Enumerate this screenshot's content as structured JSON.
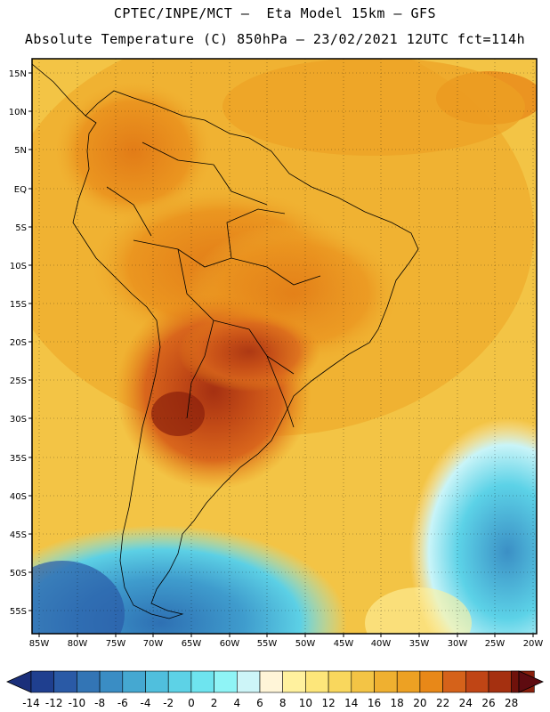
{
  "header": {
    "line1": "CPTEC/INPE/MCT –  Eta Model 15km – GFS",
    "line2": "Absolute Temperature (C) 850hPa – 23/02/2021 12UTC fct=114h"
  },
  "axes": {
    "lat_labels": [
      "15N",
      "10N",
      "5N",
      "EQ",
      "5S",
      "10S",
      "15S",
      "20S",
      "25S",
      "30S",
      "35S",
      "40S",
      "45S",
      "50S",
      "55S"
    ],
    "lon_labels": [
      "85W",
      "80W",
      "75W",
      "70W",
      "65W",
      "60W",
      "55W",
      "50W",
      "45W",
      "40W",
      "35W",
      "30W",
      "25W",
      "20W"
    ]
  },
  "colorbar": {
    "labels": [
      "-14",
      "-12",
      "-10",
      "-8",
      "-6",
      "-4",
      "-2",
      "0",
      "2",
      "4",
      "6",
      "8",
      "10",
      "12",
      "14",
      "16",
      "18",
      "20",
      "22",
      "24",
      "26",
      "28"
    ],
    "colors": [
      "#1f3f8f",
      "#2a5aa6",
      "#3375b5",
      "#3a8dc4",
      "#45a8d1",
      "#50bfdd",
      "#5dd2e6",
      "#6ee4ef",
      "#8ff4f6",
      "#cdf5f8",
      "#fff5d8",
      "#fff19e",
      "#fde67a",
      "#f9d75d",
      "#f3c445",
      "#efb030",
      "#eda123",
      "#e88818",
      "#d5621a",
      "#c04515",
      "#a53010",
      "#8a1f0c",
      "#6f120b"
    ],
    "min_arrow_color": "#1b2f7a",
    "max_arrow_color": "#5e0b10"
  }
}
